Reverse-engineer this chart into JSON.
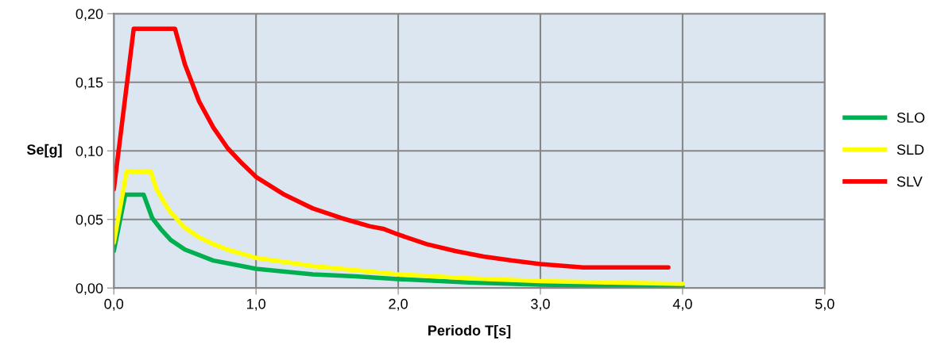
{
  "chart_data": {
    "type": "line",
    "xlabel": "Periodo T[s]",
    "ylabel": "Se[g]",
    "xlim": [
      0,
      5
    ],
    "ylim": [
      0,
      0.2
    ],
    "xticks": [
      {
        "value": 0,
        "label": "0,0"
      },
      {
        "value": 1,
        "label": "1,0"
      },
      {
        "value": 2,
        "label": "2,0"
      },
      {
        "value": 3,
        "label": "3,0"
      },
      {
        "value": 4,
        "label": "4,0"
      },
      {
        "value": 5,
        "label": "5,0"
      }
    ],
    "yticks": [
      {
        "value": 0,
        "label": "0,00"
      },
      {
        "value": 0.05,
        "label": "0,05"
      },
      {
        "value": 0.1,
        "label": "0,10"
      },
      {
        "value": 0.15,
        "label": "0,15"
      },
      {
        "value": 0.2,
        "label": "0,20"
      }
    ],
    "grid": true,
    "legend": "right",
    "marker": "none",
    "line_style": "solid",
    "series": [
      {
        "name": "SLO",
        "color": "#00b050",
        "x": [
          0,
          0.08,
          0.21,
          0.27,
          0.33,
          0.4,
          0.5,
          0.6,
          0.7,
          0.8,
          1.0,
          1.2,
          1.4,
          1.7,
          2.0,
          2.5,
          3.0,
          3.5,
          4.0
        ],
        "values": [
          0.027,
          0.068,
          0.068,
          0.051,
          0.043,
          0.035,
          0.028,
          0.024,
          0.02,
          0.018,
          0.014,
          0.012,
          0.01,
          0.0085,
          0.0065,
          0.004,
          0.0025,
          0.0015,
          0.001
        ]
      },
      {
        "name": "SLD",
        "color": "#ffff00",
        "x": [
          0,
          0.09,
          0.26,
          0.3,
          0.35,
          0.4,
          0.5,
          0.6,
          0.7,
          0.8,
          1.0,
          1.2,
          1.4,
          1.7,
          2.0,
          2.5,
          3.0,
          3.5,
          4.0
        ],
        "values": [
          0.033,
          0.085,
          0.085,
          0.072,
          0.063,
          0.055,
          0.044,
          0.037,
          0.032,
          0.028,
          0.022,
          0.019,
          0.016,
          0.013,
          0.01,
          0.007,
          0.005,
          0.004,
          0.003
        ]
      },
      {
        "name": "SLV",
        "color": "#ff0000",
        "x": [
          0,
          0.14,
          0.43,
          0.5,
          0.6,
          0.7,
          0.8,
          0.9,
          1.0,
          1.2,
          1.4,
          1.6,
          1.8,
          1.9,
          2.0,
          2.2,
          2.4,
          2.6,
          2.8,
          3.0,
          3.3,
          3.9
        ],
        "values": [
          0.072,
          0.189,
          0.189,
          0.163,
          0.136,
          0.117,
          0.102,
          0.091,
          0.081,
          0.068,
          0.058,
          0.051,
          0.045,
          0.043,
          0.039,
          0.032,
          0.027,
          0.023,
          0.02,
          0.0175,
          0.015,
          0.015
        ]
      }
    ]
  }
}
